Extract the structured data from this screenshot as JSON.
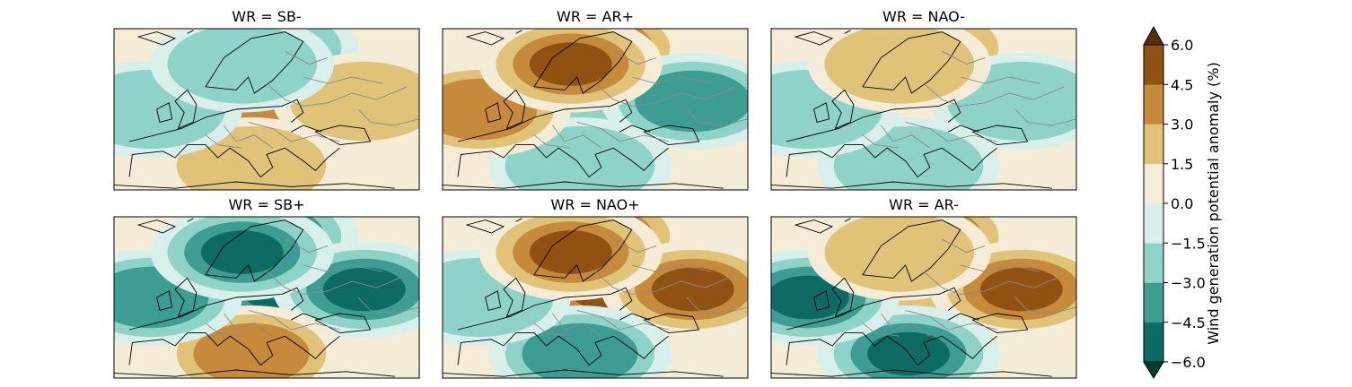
{
  "chart_data": {
    "type": "heatmap",
    "panels": [
      {
        "title": "WR = SB-",
        "pattern": {
          "north": -1,
          "centre": 2,
          "east": 1,
          "south": 1,
          "west": -1,
          "scandinavia": -1
        }
      },
      {
        "title": "WR = AR+",
        "pattern": {
          "north": 3,
          "centre": -1,
          "east": -2,
          "south": -1,
          "west": 2,
          "scandinavia": 3
        }
      },
      {
        "title": "WR = NAO-",
        "pattern": {
          "north": 1,
          "centre": 0,
          "east": -1,
          "south": -1,
          "west": -1,
          "scandinavia": 1
        }
      },
      {
        "title": "WR = SB+",
        "pattern": {
          "north": -4,
          "centre": -5,
          "east": -4,
          "south": 2,
          "west": -2,
          "scandinavia": -5
        }
      },
      {
        "title": "WR = NAO+",
        "pattern": {
          "north": 3,
          "centre": 3,
          "east": 4,
          "south": -2,
          "west": -1,
          "scandinavia": 3
        }
      },
      {
        "title": "WR = AR-",
        "pattern": {
          "north": 2,
          "centre": 1,
          "east": 5,
          "south": -4,
          "west": -3,
          "scandinavia": 1
        }
      }
    ],
    "colorbar": {
      "label": "Wind generation potential anomaly (%)",
      "ticks": [
        "6.0",
        "4.5",
        "3.0",
        "1.5",
        "0.0",
        "−1.5",
        "−3.0",
        "−4.5",
        "−6.0"
      ],
      "range": [
        -6.0,
        6.0
      ],
      "extend": "both",
      "colors": [
        "#0d6b64",
        "#3d9d92",
        "#8fd3c8",
        "#d9efec",
        "#f5ecd7",
        "#e0c279",
        "#c58a3b",
        "#905213"
      ],
      "over_color": "#543005",
      "under_color": "#003c30"
    }
  }
}
